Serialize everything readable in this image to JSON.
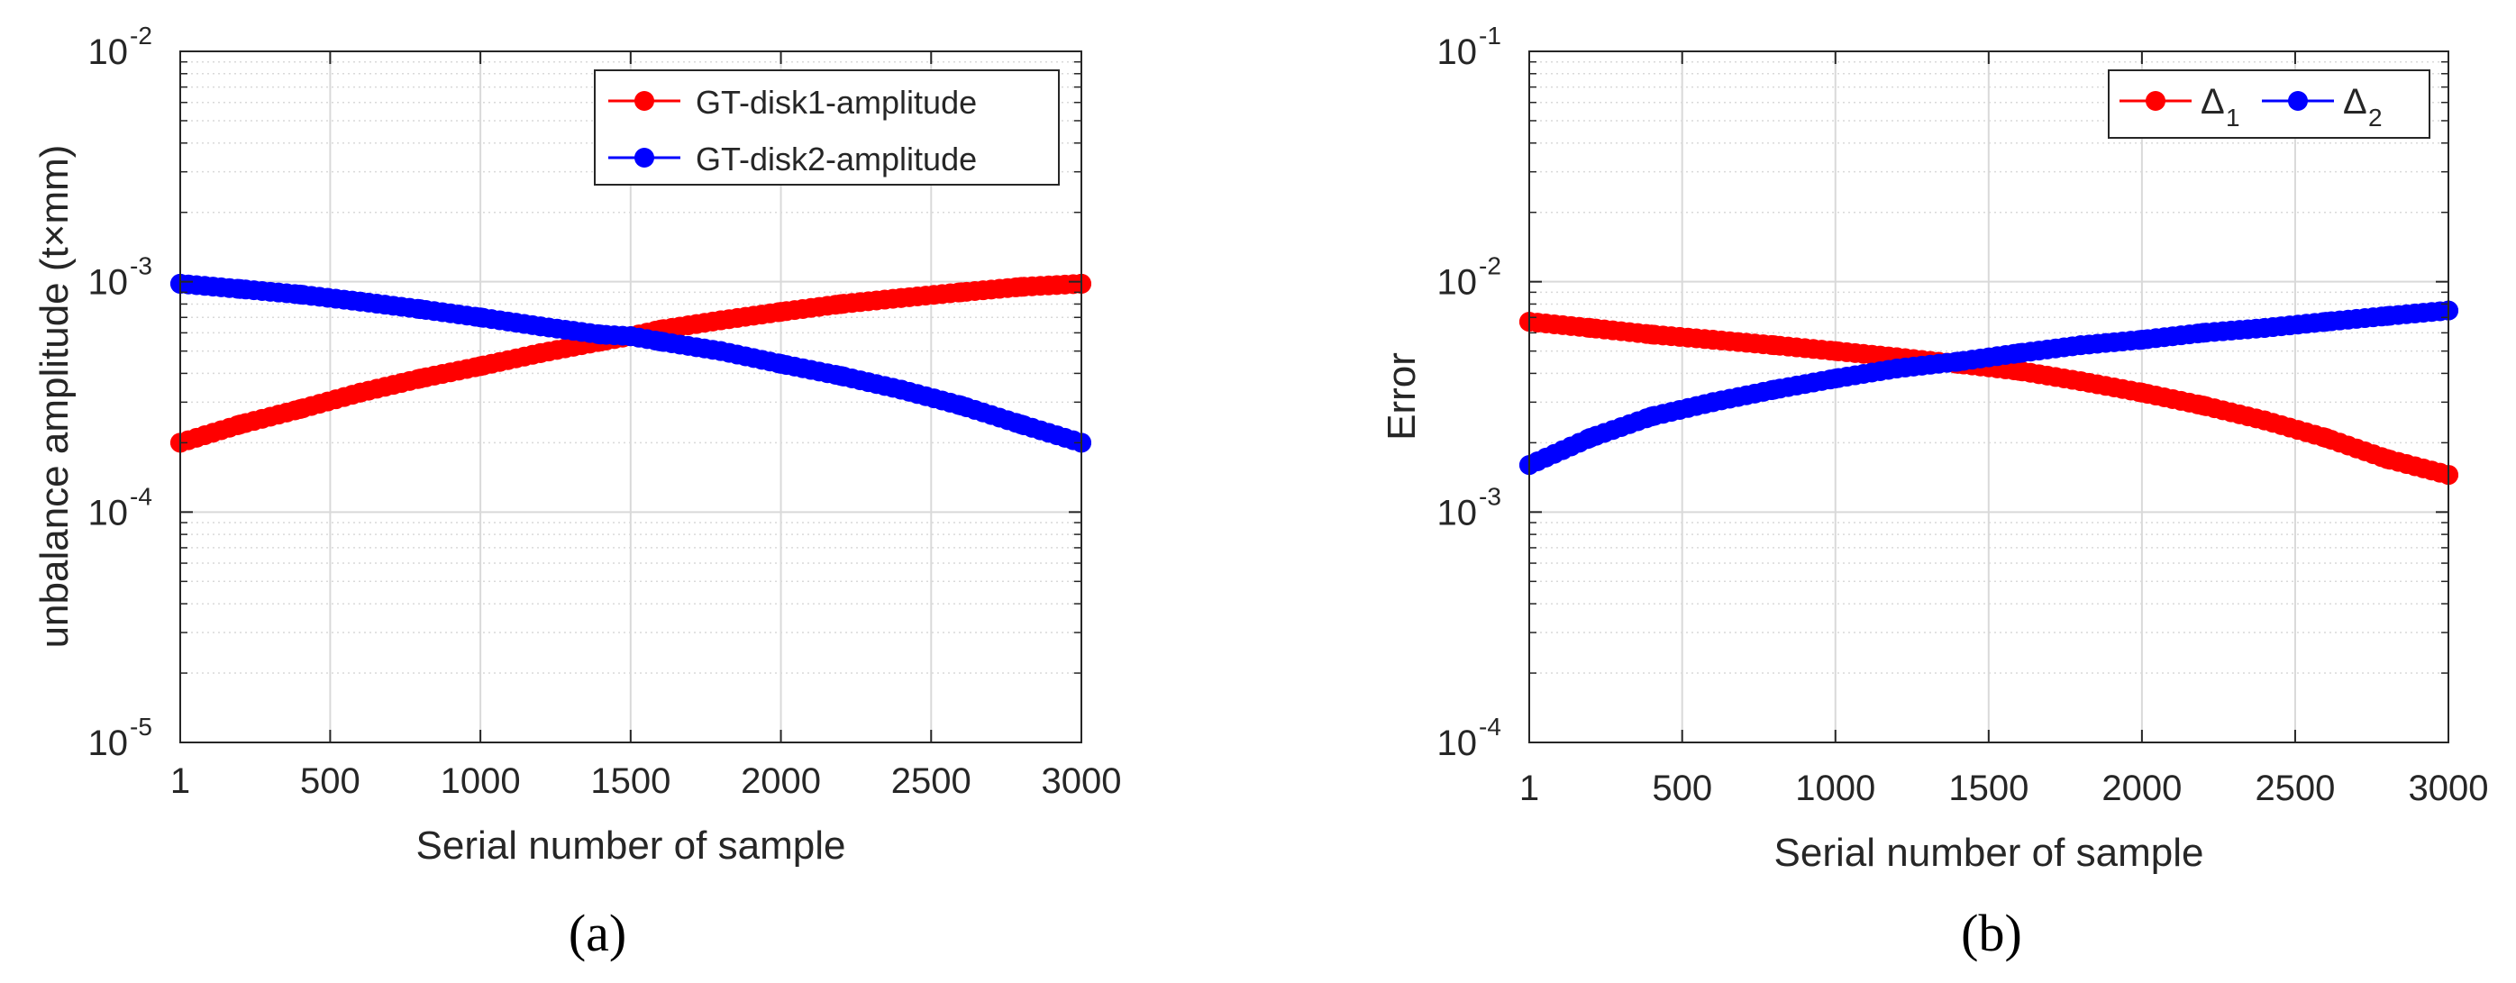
{
  "colors": {
    "series1": "#ff0000",
    "series2": "#0000ff",
    "grid": "#d9d9d9",
    "axis": "#262626"
  },
  "chart_data": [
    {
      "type": "scatter",
      "panel_label": "(a)",
      "xlabel": "Serial number of sample",
      "ylabel": "unbalance amplitude (t×mm)",
      "yscale": "log",
      "xlim": [
        1,
        3000
      ],
      "ylim": [
        1e-05,
        0.01
      ],
      "x_ticks": [
        1,
        500,
        1000,
        1500,
        2000,
        2500,
        3000
      ],
      "x_tick_labels": [
        "1",
        "500",
        "1000",
        "1500",
        "2000",
        "2500",
        "3000"
      ],
      "y_ticks": [
        {
          "base": "10",
          "exp": "-5"
        },
        {
          "base": "10",
          "exp": "-4"
        },
        {
          "base": "10",
          "exp": "-3"
        },
        {
          "base": "10",
          "exp": "-2"
        }
      ],
      "grid": true,
      "legend_position": "top-right",
      "series": [
        {
          "name": "GT-disk1-amplitude",
          "color": "#ff0000",
          "x": [
            1,
            200,
            400,
            600,
            800,
            1000,
            1200,
            1400,
            1500,
            1600,
            1800,
            2000,
            2200,
            2400,
            2600,
            2800,
            3000
          ],
          "y": [
            0.0002,
            0.00024,
            0.00028,
            0.00033,
            0.00038,
            0.00043,
            0.00049,
            0.00055,
            0.00058,
            0.00062,
            0.00068,
            0.00074,
            0.0008,
            0.00085,
            0.0009,
            0.00095,
            0.00098
          ]
        },
        {
          "name": "GT-disk2-amplitude",
          "color": "#0000ff",
          "x": [
            1,
            200,
            400,
            600,
            800,
            1000,
            1200,
            1400,
            1500,
            1600,
            1800,
            2000,
            2200,
            2400,
            2600,
            2800,
            3000
          ],
          "y": [
            0.00098,
            0.00093,
            0.00088,
            0.00082,
            0.00076,
            0.0007,
            0.00064,
            0.00059,
            0.00058,
            0.00055,
            0.0005,
            0.00044,
            0.00039,
            0.00034,
            0.00029,
            0.00024,
            0.0002
          ]
        }
      ]
    },
    {
      "type": "scatter",
      "panel_label": "(b)",
      "xlabel": "Serial number of sample",
      "ylabel": "Error",
      "yscale": "log",
      "xlim": [
        1,
        3000
      ],
      "ylim": [
        0.0001,
        0.1
      ],
      "x_ticks": [
        1,
        500,
        1000,
        1500,
        2000,
        2500,
        3000
      ],
      "x_tick_labels": [
        "1",
        "500",
        "1000",
        "1500",
        "2000",
        "2500",
        "3000"
      ],
      "y_ticks": [
        {
          "base": "10",
          "exp": "-4"
        },
        {
          "base": "10",
          "exp": "-3"
        },
        {
          "base": "10",
          "exp": "-2"
        },
        {
          "base": "10",
          "exp": "-1"
        }
      ],
      "grid": true,
      "legend_position": "top-right",
      "series": [
        {
          "name": "Δ",
          "subscript": "1",
          "color": "#ff0000",
          "x": [
            1,
            200,
            400,
            600,
            800,
            1000,
            1200,
            1400,
            1600,
            1800,
            2000,
            2200,
            2400,
            2600,
            2800,
            3000
          ],
          "y": [
            0.0067,
            0.0063,
            0.0059,
            0.0056,
            0.0053,
            0.005,
            0.0047,
            0.0044,
            0.0041,
            0.0037,
            0.0033,
            0.0029,
            0.0025,
            0.0021,
            0.0017,
            0.00145
          ]
        },
        {
          "name": "Δ",
          "subscript": "2",
          "color": "#0000ff",
          "x": [
            1,
            200,
            400,
            600,
            800,
            1000,
            1200,
            1400,
            1600,
            1800,
            2000,
            2200,
            2400,
            2600,
            2800,
            3000
          ],
          "y": [
            0.0016,
            0.0021,
            0.0026,
            0.003,
            0.0034,
            0.0038,
            0.0042,
            0.0045,
            0.0049,
            0.0053,
            0.0056,
            0.006,
            0.0063,
            0.0067,
            0.0071,
            0.0075
          ]
        }
      ]
    }
  ]
}
